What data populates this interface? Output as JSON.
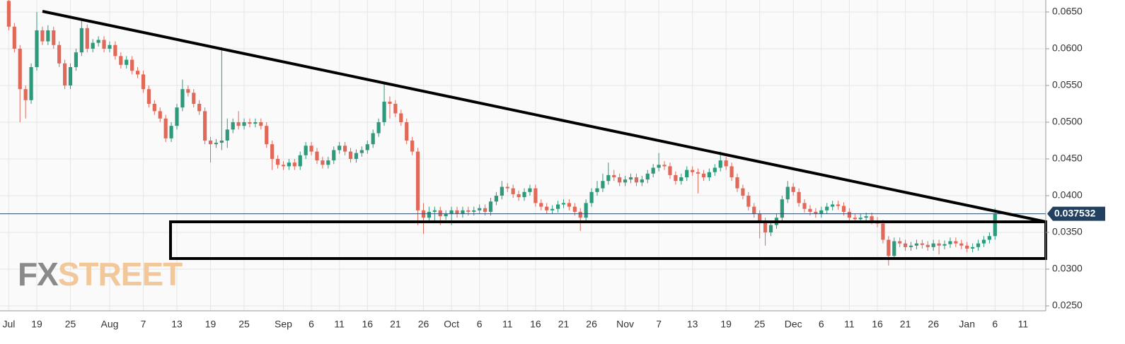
{
  "chart_data": {
    "type": "candlestick",
    "categories": [
      "Jul",
      null,
      null,
      null,
      null,
      "19",
      null,
      null,
      null,
      null,
      null,
      "25",
      null,
      null,
      null,
      null,
      null,
      null,
      "Aug",
      null,
      null,
      null,
      null,
      null,
      "7",
      null,
      null,
      null,
      null,
      null,
      "13",
      null,
      null,
      null,
      null,
      null,
      "19",
      null,
      null,
      null,
      null,
      null,
      "25",
      null,
      null,
      null,
      null,
      null,
      null,
      "Sep",
      null,
      null,
      null,
      null,
      "6",
      null,
      null,
      null,
      null,
      "11",
      null,
      null,
      null,
      null,
      "16",
      null,
      null,
      null,
      null,
      "21",
      null,
      null,
      null,
      null,
      "26",
      null,
      null,
      null,
      null,
      "Oct",
      null,
      null,
      null,
      null,
      "6",
      null,
      null,
      null,
      null,
      "11",
      null,
      null,
      null,
      null,
      "16",
      null,
      null,
      null,
      null,
      "21",
      null,
      null,
      null,
      null,
      "26",
      null,
      null,
      null,
      null,
      null,
      "Nov",
      null,
      null,
      null,
      null,
      null,
      "7",
      null,
      null,
      null,
      null,
      null,
      "13",
      null,
      null,
      null,
      null,
      null,
      "19",
      null,
      null,
      null,
      null,
      null,
      "25",
      null,
      null,
      null,
      null,
      null,
      "Dec",
      null,
      null,
      null,
      null,
      "6",
      null,
      null,
      null,
      null,
      "11",
      null,
      null,
      null,
      null,
      "16",
      null,
      null,
      null,
      null,
      "21",
      null,
      null,
      null,
      null,
      "26",
      null,
      null,
      null,
      null,
      null,
      "Jan",
      null,
      null,
      null,
      null,
      "6",
      null,
      null,
      null,
      null,
      "11",
      null,
      null,
      null
    ],
    "open": [
      0.0665,
      0.063,
      0.06,
      0.0545,
      0.053,
      0.0575,
      0.0625,
      0.061,
      0.0625,
      0.0605,
      0.058,
      0.055,
      0.0575,
      0.0595,
      0.0628,
      0.06,
      0.0608,
      0.0612,
      0.06,
      0.0605,
      0.059,
      0.0578,
      0.0585,
      0.057,
      0.0565,
      0.0545,
      0.0525,
      0.0515,
      0.0505,
      0.0478,
      0.0495,
      0.052,
      0.0545,
      0.054,
      0.0525,
      0.0515,
      0.0475,
      0.047,
      0.0472,
      0.0475,
      0.049,
      0.05,
      0.0495,
      0.05,
      0.0498,
      0.05,
      0.0495,
      0.047,
      0.045,
      0.0442,
      0.044,
      0.0445,
      0.044,
      0.0455,
      0.0468,
      0.046,
      0.0448,
      0.0442,
      0.0448,
      0.0462,
      0.0468,
      0.046,
      0.045,
      0.0458,
      0.0462,
      0.047,
      0.0485,
      0.05,
      0.0528,
      0.0525,
      0.0512,
      0.05,
      0.0475,
      0.046,
      0.038,
      0.037,
      0.0378,
      0.038,
      0.0372,
      0.0375,
      0.038,
      0.0375,
      0.038,
      0.0378,
      0.038,
      0.0383,
      0.0378,
      0.0392,
      0.04,
      0.0412,
      0.041,
      0.0402,
      0.0398,
      0.0405,
      0.041,
      0.039,
      0.0385,
      0.038,
      0.0382,
      0.0388,
      0.039,
      0.0385,
      0.0378,
      0.037,
      0.039,
      0.0405,
      0.041,
      0.042,
      0.0428,
      0.0425,
      0.0418,
      0.0422,
      0.0425,
      0.0418,
      0.0422,
      0.043,
      0.0438,
      0.0442,
      0.044,
      0.0428,
      0.042,
      0.0425,
      0.0435,
      0.0432,
      0.043,
      0.0425,
      0.0432,
      0.0438,
      0.0448,
      0.044,
      0.0425,
      0.041,
      0.04,
      0.0385,
      0.0375,
      0.0365,
      0.035,
      0.036,
      0.037,
      0.0395,
      0.0412,
      0.0405,
      0.039,
      0.0382,
      0.0378,
      0.0375,
      0.038,
      0.0385,
      0.0388,
      0.0386,
      0.0378,
      0.037,
      0.0368,
      0.037,
      0.0372,
      0.0366,
      0.0362,
      0.034,
      0.0318,
      0.0338,
      0.0335,
      0.033,
      0.0332,
      0.0335,
      0.0333,
      0.033,
      0.0335,
      0.0332,
      0.0334,
      0.0338,
      0.0335,
      0.0332,
      0.0328,
      0.033,
      0.0335,
      0.034,
      0.0345,
      null,
      null,
      null,
      null,
      null,
      null,
      null,
      null
    ],
    "high": [
      0.067,
      0.0635,
      0.0605,
      0.055,
      0.058,
      0.065,
      0.063,
      0.0632,
      0.063,
      0.061,
      0.0585,
      0.058,
      0.06,
      0.064,
      0.0633,
      0.0613,
      0.0617,
      0.0617,
      0.061,
      0.061,
      0.0595,
      0.059,
      0.059,
      0.0575,
      0.057,
      0.055,
      0.053,
      0.052,
      0.051,
      0.05,
      0.0525,
      0.0558,
      0.055,
      0.0545,
      0.053,
      0.052,
      0.048,
      0.0477,
      0.0602,
      0.0505,
      0.0505,
      0.0515,
      0.0505,
      0.0505,
      0.0505,
      0.0505,
      0.05,
      0.0475,
      0.0455,
      0.0447,
      0.045,
      0.045,
      0.046,
      0.0473,
      0.0473,
      0.0465,
      0.0453,
      0.0453,
      0.0467,
      0.0473,
      0.0473,
      0.0465,
      0.0463,
      0.0467,
      0.0475,
      0.049,
      0.0505,
      0.0552,
      0.0535,
      0.053,
      0.0517,
      0.0505,
      0.048,
      0.0465,
      0.039,
      0.0385,
      0.0385,
      0.0385,
      0.038,
      0.0385,
      0.0385,
      0.0385,
      0.0385,
      0.0385,
      0.0388,
      0.0388,
      0.0397,
      0.0405,
      0.042,
      0.0417,
      0.0415,
      0.0407,
      0.041,
      0.0415,
      0.0415,
      0.0395,
      0.039,
      0.0387,
      0.0393,
      0.0395,
      0.0395,
      0.039,
      0.0383,
      0.0395,
      0.041,
      0.042,
      0.043,
      0.0445,
      0.0435,
      0.043,
      0.0427,
      0.043,
      0.043,
      0.0427,
      0.0435,
      0.0443,
      0.0458,
      0.0447,
      0.0445,
      0.0433,
      0.043,
      0.044,
      0.044,
      0.0437,
      0.0435,
      0.0437,
      0.0443,
      0.046,
      0.0453,
      0.0445,
      0.043,
      0.0415,
      0.0405,
      0.039,
      0.038,
      0.037,
      0.0365,
      0.0375,
      0.04,
      0.042,
      0.0417,
      0.041,
      0.0395,
      0.0387,
      0.0383,
      0.0385,
      0.039,
      0.0393,
      0.0393,
      0.0391,
      0.0383,
      0.0375,
      0.0375,
      0.0377,
      0.0377,
      0.0371,
      0.0367,
      0.0345,
      0.0343,
      0.0343,
      0.034,
      0.0337,
      0.034,
      0.034,
      0.0338,
      0.034,
      0.034,
      0.0339,
      0.0343,
      0.0343,
      0.034,
      0.0337,
      0.0335,
      0.034,
      0.0345,
      0.035,
      0.0383,
      null,
      null,
      null,
      null,
      null,
      null,
      null,
      null
    ],
    "low": [
      0.0625,
      0.0595,
      0.05,
      0.0505,
      0.0525,
      0.057,
      0.0605,
      0.0605,
      0.06,
      0.0575,
      0.0545,
      0.0545,
      0.057,
      0.059,
      0.0595,
      0.0595,
      0.0603,
      0.0595,
      0.0595,
      0.0585,
      0.0573,
      0.0573,
      0.0565,
      0.056,
      0.054,
      0.052,
      0.051,
      0.05,
      0.0473,
      0.0473,
      0.049,
      0.0515,
      0.0535,
      0.052,
      0.051,
      0.047,
      0.0445,
      0.0465,
      0.0462,
      0.0465,
      0.0485,
      0.049,
      0.049,
      0.0493,
      0.0493,
      0.049,
      0.0465,
      0.0435,
      0.0437,
      0.0435,
      0.0435,
      0.0435,
      0.0435,
      0.045,
      0.0455,
      0.0443,
      0.0437,
      0.0437,
      0.0443,
      0.0457,
      0.0455,
      0.0445,
      0.0445,
      0.0453,
      0.0457,
      0.0465,
      0.048,
      0.0495,
      0.0505,
      0.0507,
      0.0495,
      0.047,
      0.0455,
      0.036,
      0.0348,
      0.0365,
      0.0365,
      0.036,
      0.0367,
      0.036,
      0.037,
      0.037,
      0.0373,
      0.0373,
      0.0375,
      0.0373,
      0.0373,
      0.0387,
      0.0395,
      0.0405,
      0.0397,
      0.0393,
      0.0393,
      0.04,
      0.0385,
      0.038,
      0.0375,
      0.0375,
      0.0377,
      0.0383,
      0.038,
      0.0373,
      0.0352,
      0.0365,
      0.0385,
      0.04,
      0.0405,
      0.0415,
      0.042,
      0.0413,
      0.0413,
      0.0417,
      0.0413,
      0.0413,
      0.0417,
      0.0425,
      0.0433,
      0.0435,
      0.0423,
      0.0415,
      0.0415,
      0.042,
      0.0427,
      0.0403,
      0.042,
      0.042,
      0.0427,
      0.0433,
      0.0435,
      0.042,
      0.0405,
      0.0395,
      0.038,
      0.037,
      0.0342,
      0.0332,
      0.0345,
      0.0355,
      0.0365,
      0.039,
      0.04,
      0.0385,
      0.0377,
      0.0373,
      0.037,
      0.037,
      0.0375,
      0.038,
      0.0381,
      0.0373,
      0.0365,
      0.0363,
      0.0363,
      0.0365,
      0.0361,
      0.0357,
      0.0335,
      0.0305,
      0.0313,
      0.033,
      0.0325,
      0.0325,
      0.0327,
      0.0328,
      0.0325,
      0.0325,
      0.032,
      0.0327,
      0.0329,
      0.033,
      0.0327,
      0.0323,
      0.0323,
      0.0325,
      0.033,
      0.0335,
      0.034,
      null,
      null,
      null,
      null,
      null,
      null,
      null,
      null
    ],
    "close": [
      0.063,
      0.06,
      0.0545,
      0.053,
      0.0575,
      0.0625,
      0.061,
      0.0625,
      0.0605,
      0.058,
      0.055,
      0.0575,
      0.0595,
      0.0628,
      0.06,
      0.0608,
      0.0612,
      0.06,
      0.0605,
      0.059,
      0.0578,
      0.0585,
      0.057,
      0.0565,
      0.0545,
      0.0525,
      0.0515,
      0.0505,
      0.0478,
      0.0495,
      0.052,
      0.0545,
      0.054,
      0.0525,
      0.0515,
      0.0475,
      0.047,
      0.0472,
      0.0475,
      0.049,
      0.05,
      0.0495,
      0.05,
      0.0498,
      0.05,
      0.0495,
      0.047,
      0.045,
      0.0442,
      0.044,
      0.0445,
      0.044,
      0.0455,
      0.0468,
      0.046,
      0.0448,
      0.0442,
      0.0448,
      0.0462,
      0.0468,
      0.046,
      0.045,
      0.0458,
      0.0462,
      0.047,
      0.0485,
      0.05,
      0.0528,
      0.0525,
      0.0512,
      0.05,
      0.0475,
      0.046,
      0.038,
      0.037,
      0.0378,
      0.038,
      0.0372,
      0.0375,
      0.038,
      0.0375,
      0.038,
      0.0378,
      0.038,
      0.0383,
      0.0378,
      0.0392,
      0.04,
      0.0412,
      0.041,
      0.0402,
      0.0398,
      0.0405,
      0.041,
      0.039,
      0.0385,
      0.038,
      0.0382,
      0.0388,
      0.039,
      0.0385,
      0.0378,
      0.037,
      0.039,
      0.0405,
      0.041,
      0.042,
      0.0428,
      0.0425,
      0.0418,
      0.0422,
      0.0425,
      0.0418,
      0.0422,
      0.043,
      0.0438,
      0.0442,
      0.044,
      0.0428,
      0.042,
      0.0425,
      0.0435,
      0.0432,
      0.043,
      0.0425,
      0.0432,
      0.0438,
      0.0448,
      0.044,
      0.0425,
      0.041,
      0.04,
      0.0385,
      0.0375,
      0.0365,
      0.035,
      0.036,
      0.037,
      0.0395,
      0.0412,
      0.0405,
      0.039,
      0.0382,
      0.0378,
      0.0375,
      0.038,
      0.0385,
      0.0388,
      0.0386,
      0.0378,
      0.037,
      0.0368,
      0.037,
      0.0372,
      0.0366,
      0.0362,
      0.034,
      0.0318,
      0.0338,
      0.0335,
      0.033,
      0.0332,
      0.0335,
      0.0333,
      0.033,
      0.0335,
      0.0332,
      0.0334,
      0.0338,
      0.0335,
      0.0332,
      0.0328,
      0.033,
      0.0335,
      0.034,
      0.0345,
      0.0375,
      null,
      null,
      null,
      null,
      null,
      null,
      null,
      null
    ],
    "up_color": "#2e9a7c",
    "down_color": "#e0695a",
    "ylim": [
      0.02433,
      0.06663
    ],
    "yticks": [
      {
        "value": 0.025,
        "label": "0.0250"
      },
      {
        "value": 0.03,
        "label": "0.0300"
      },
      {
        "value": 0.035,
        "label": "0.0350"
      },
      {
        "value": 0.04,
        "label": "0.0400"
      },
      {
        "value": 0.045,
        "label": "0.0450"
      },
      {
        "value": 0.05,
        "label": "0.0500"
      },
      {
        "value": 0.055,
        "label": "0.0550"
      },
      {
        "value": 0.06,
        "label": "0.0600"
      },
      {
        "value": 0.065,
        "label": "0.0650"
      }
    ],
    "grid": true,
    "last_price": 0.037532,
    "logo": {
      "fx": "FX",
      "street": "STREET"
    }
  }
}
